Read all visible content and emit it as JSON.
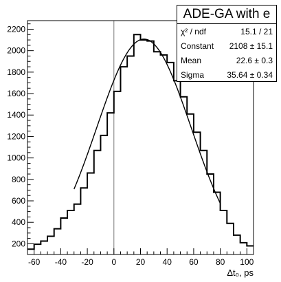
{
  "chart_data": {
    "type": "bar",
    "title": "",
    "xlabel": "Δt₀, ps",
    "ylabel": "",
    "xlim": [
      -65,
      105
    ],
    "ylim": [
      100,
      2280
    ],
    "bin_width": 5,
    "x_ticks": [
      -60,
      -40,
      -20,
      0,
      20,
      40,
      60,
      80,
      100
    ],
    "y_ticks": [
      200,
      400,
      600,
      800,
      1000,
      1200,
      1400,
      1600,
      1800,
      2000,
      2200
    ],
    "vertical_reference_line_x": 0,
    "bins": {
      "x_low": [
        -65,
        -60,
        -55,
        -50,
        -45,
        -40,
        -35,
        -30,
        -25,
        -20,
        -15,
        -10,
        -5,
        0,
        5,
        10,
        15,
        20,
        25,
        30,
        35,
        40,
        45,
        50,
        55,
        60,
        65,
        70,
        75,
        80,
        85,
        90,
        95,
        100
      ],
      "values": [
        150,
        195,
        225,
        270,
        340,
        440,
        510,
        570,
        720,
        860,
        1070,
        1210,
        1420,
        1620,
        1850,
        1950,
        2150,
        2100,
        2090,
        1990,
        1960,
        1890,
        1720,
        1570,
        1410,
        1240,
        1070,
        850,
        680,
        510,
        390,
        280,
        210,
        180
      ]
    },
    "fit": {
      "function": "gaus",
      "constant": 2108,
      "mean": 22.6,
      "sigma": 35.64,
      "x_range": [
        -30,
        80
      ]
    },
    "stats_box": {
      "title": "ADE-GA with e",
      "rows": [
        {
          "label": "χ² / ndf",
          "value": "15.1 / 21"
        },
        {
          "label": "Constant",
          "value": "2108 ± 15.1"
        },
        {
          "label": "Mean",
          "value": "22.6 ± 0.3"
        },
        {
          "label": "Sigma",
          "value": "35.64 ± 0.34"
        }
      ]
    }
  }
}
